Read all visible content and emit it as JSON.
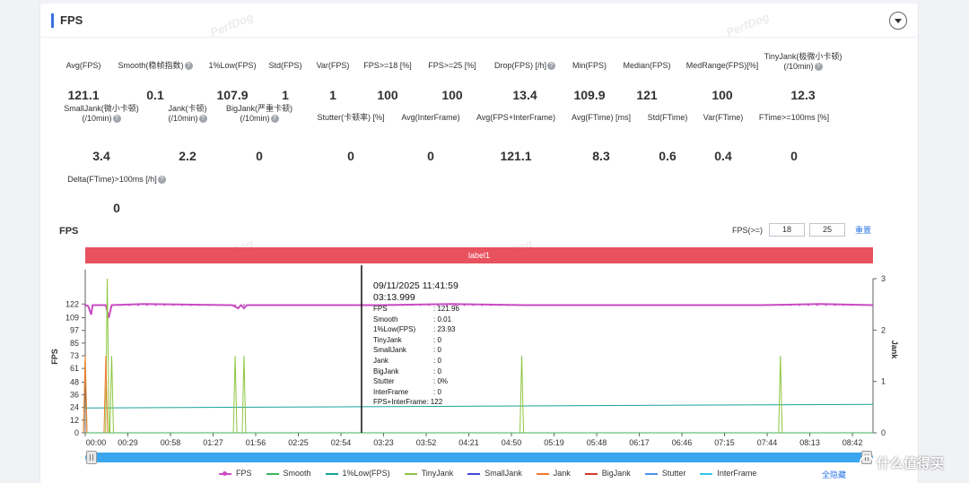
{
  "panel": {
    "title": "FPS"
  },
  "watermark_text": "PerfDog",
  "metrics": [
    {
      "label": "Avg(FPS)",
      "value": "121.1",
      "help": false
    },
    {
      "label": "Smooth(稳帧指数)",
      "value": "0.1",
      "help": true
    },
    {
      "label": "1%Low(FPS)",
      "value": "107.9",
      "help": false
    },
    {
      "label": "Std(FPS)",
      "value": "1",
      "help": false
    },
    {
      "label": "Var(FPS)",
      "value": "1",
      "help": false
    },
    {
      "label": "FPS>=18 [%]",
      "value": "100",
      "help": false
    },
    {
      "label": "FPS>=25 [%]",
      "value": "100",
      "help": false
    },
    {
      "label": "Drop(FPS) [/h]",
      "value": "13.4",
      "help": true
    },
    {
      "label": "Min(FPS)",
      "value": "109.9",
      "help": false
    },
    {
      "label": "Median(FPS)",
      "value": "121",
      "help": false
    },
    {
      "label": "MedRange(FPS)[%]",
      "value": "100",
      "help": false
    },
    {
      "label": "TinyJank(极微小卡顿)",
      "label2": "(/10min)",
      "value": "12.3",
      "help": true
    },
    {
      "label": "SmallJank(微小卡顿)",
      "label2": "(/10min)",
      "value": "3.4",
      "help": true
    },
    {
      "label": "Jank(卡顿)",
      "label2": "(/10min)",
      "value": "2.2",
      "help": true
    },
    {
      "label": "BigJank(严重卡顿)",
      "label2": "(/10min)",
      "value": "0",
      "help": true
    },
    {
      "label": "Stutter(卡顿率) [%]",
      "value": "0",
      "help": false
    },
    {
      "label": "Avg(InterFrame)",
      "value": "0",
      "help": false
    },
    {
      "label": "Avg(FPS+InterFrame)",
      "value": "121.1",
      "help": false
    },
    {
      "label": "Avg(FTime) [ms]",
      "value": "8.3",
      "help": false
    },
    {
      "label": "Std(FTime)",
      "value": "0.6",
      "help": false
    },
    {
      "label": "Var(FTime)",
      "value": "0.4",
      "help": false
    },
    {
      "label": "FTime>=100ms [%]",
      "value": "0",
      "help": false
    },
    {
      "label": "Delta(FTime)>100ms [/h]",
      "value": "0",
      "help": true
    }
  ],
  "chart_section": {
    "title": "FPS",
    "filter_label": "FPS(>=)",
    "threshold1": "18",
    "threshold2": "25",
    "reset_label": "重置",
    "band_label": "label1"
  },
  "chart_data": {
    "type": "line",
    "ylabel": "FPS",
    "y2label": "Jank",
    "y_ticks": [
      "0",
      "12",
      "24",
      "36",
      "48",
      "61",
      "73",
      "85",
      "97",
      "109",
      "122"
    ],
    "y_max": 146,
    "y2_ticks": [
      "0",
      "1",
      "2",
      "3"
    ],
    "y2_max": 3,
    "x_ticks": [
      "00:00",
      "00:29",
      "00:58",
      "01:27",
      "01:56",
      "02:25",
      "02:54",
      "03:23",
      "03:52",
      "04:21",
      "04:50",
      "05:19",
      "05:48",
      "06:17",
      "06:46",
      "07:15",
      "07:44",
      "08:13",
      "08:42"
    ],
    "x_max_seconds": 536,
    "cursor_seconds": 188,
    "series": [
      {
        "name": "FPS",
        "color": "#c94bc4",
        "points": [
          [
            0,
            121
          ],
          [
            2,
            120
          ],
          [
            4,
            112
          ],
          [
            5,
            121
          ],
          [
            14,
            121
          ],
          [
            16,
            109
          ],
          [
            18,
            121
          ],
          [
            40,
            122
          ],
          [
            100,
            121
          ],
          [
            104,
            118
          ],
          [
            106,
            121
          ],
          [
            108,
            118
          ],
          [
            110,
            121
          ],
          [
            200,
            121
          ],
          [
            250,
            122
          ],
          [
            300,
            121
          ],
          [
            400,
            121
          ],
          [
            460,
            121
          ],
          [
            500,
            122
          ],
          [
            536,
            121
          ]
        ]
      },
      {
        "name": "Smooth",
        "color": "#3cb35a",
        "points": [
          [
            0,
            0
          ],
          [
            536,
            0
          ]
        ]
      },
      {
        "name": "1%Low(FPS)",
        "color": "#1ba39c",
        "points": [
          [
            0,
            23.5
          ],
          [
            536,
            27
          ]
        ]
      },
      {
        "name": "TinyJank",
        "color": "#8dc63f",
        "spikes": [
          [
            0,
            1.5
          ],
          [
            15,
            3
          ],
          [
            18,
            1.5
          ],
          [
            102,
            1.5
          ],
          [
            108,
            1.5
          ],
          [
            297,
            1.5
          ],
          [
            473,
            1.5
          ]
        ]
      },
      {
        "name": "SmallJank",
        "color": "#3f4bd6",
        "spikes": []
      },
      {
        "name": "Jank",
        "color": "#f07a2e",
        "spikes": [
          [
            0,
            1.5
          ],
          [
            14,
            1.5
          ]
        ]
      },
      {
        "name": "BigJank",
        "color": "#d9382c",
        "spikes": []
      },
      {
        "name": "Stutter",
        "color": "#4a8fe8",
        "spikes": []
      },
      {
        "name": "InterFrame",
        "color": "#33c6e8",
        "spikes": []
      }
    ]
  },
  "tooltip": {
    "datetime": "09/11/2025 11:41:59",
    "time": "03:13.999",
    "rows": [
      {
        "k": "FPS",
        "v": ": 121.96"
      },
      {
        "k": "Smooth",
        "v": ": 0.01"
      },
      {
        "k": "1%Low(FPS)",
        "v": ": 23.93"
      },
      {
        "k": "TinyJank",
        "v": ": 0"
      },
      {
        "k": "SmallJank",
        "v": ": 0"
      },
      {
        "k": "Jank",
        "v": ": 0"
      },
      {
        "k": "BigJank",
        "v": ": 0"
      },
      {
        "k": "Stutter",
        "v": ": 0%"
      },
      {
        "k": "InterFrame",
        "v": ": 0"
      }
    ],
    "last_row": "FPS+InterFrame: 122"
  },
  "legend": [
    {
      "name": "FPS",
      "color": "#c94bc4"
    },
    {
      "name": "Smooth",
      "color": "#3cb35a"
    },
    {
      "name": "1%Low(FPS)",
      "color": "#1ba39c"
    },
    {
      "name": "TinyJank",
      "color": "#8dc63f"
    },
    {
      "name": "SmallJank",
      "color": "#3f4bd6"
    },
    {
      "name": "Jank",
      "color": "#f07a2e"
    },
    {
      "name": "BigJank",
      "color": "#d9382c"
    },
    {
      "name": "Stutter",
      "color": "#4a8fe8"
    },
    {
      "name": "InterFrame",
      "color": "#33c6e8"
    }
  ],
  "hide_all_label": "全隐藏",
  "brand": "什么值得买"
}
